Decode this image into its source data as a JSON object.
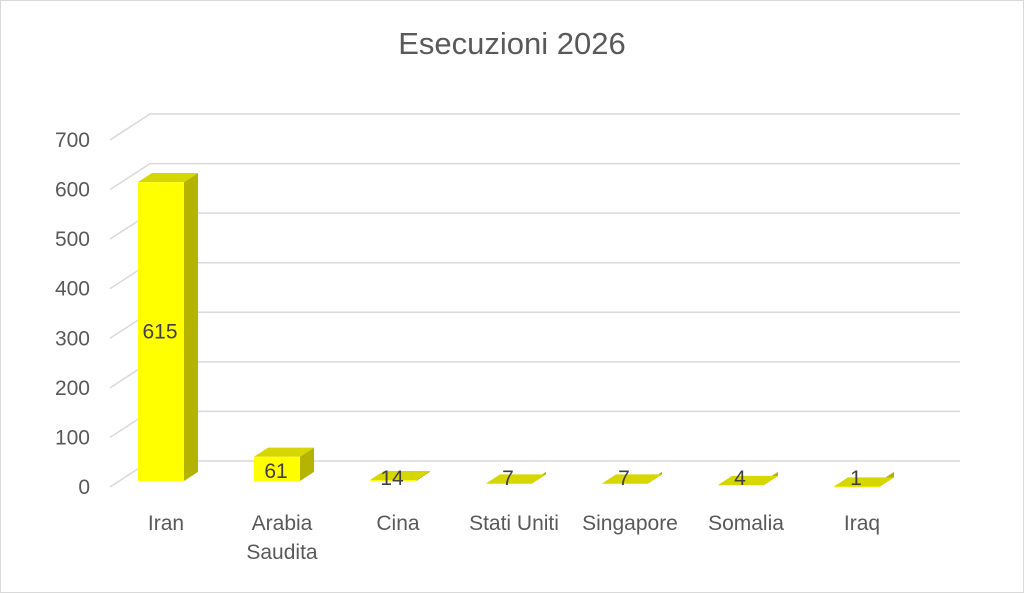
{
  "chart_data": {
    "type": "bar",
    "title": "Esecuzioni 2026",
    "categories": [
      [
        "Iran"
      ],
      [
        "Arabia",
        "Saudita"
      ],
      [
        "Cina"
      ],
      [
        "Stati Uniti"
      ],
      [
        "Singapore"
      ],
      [
        "Somalia"
      ],
      [
        "Iraq"
      ]
    ],
    "values": [
      615,
      61,
      14,
      7,
      7,
      4,
      1
    ],
    "data_labels": [
      "615",
      "61",
      "14",
      "7",
      "7",
      "4",
      "1"
    ],
    "yticks": [
      "0",
      "100",
      "200",
      "300",
      "400",
      "500",
      "600",
      "700"
    ],
    "ylim": [
      0,
      700
    ],
    "xlabel": "",
    "ylabel": "",
    "grid": true,
    "legend": "none",
    "bar_style": "3d",
    "colors": {
      "front": "#FFFF00",
      "side": "#B3B300",
      "top": "#D6D600",
      "grid": "#D9D9D9"
    }
  }
}
